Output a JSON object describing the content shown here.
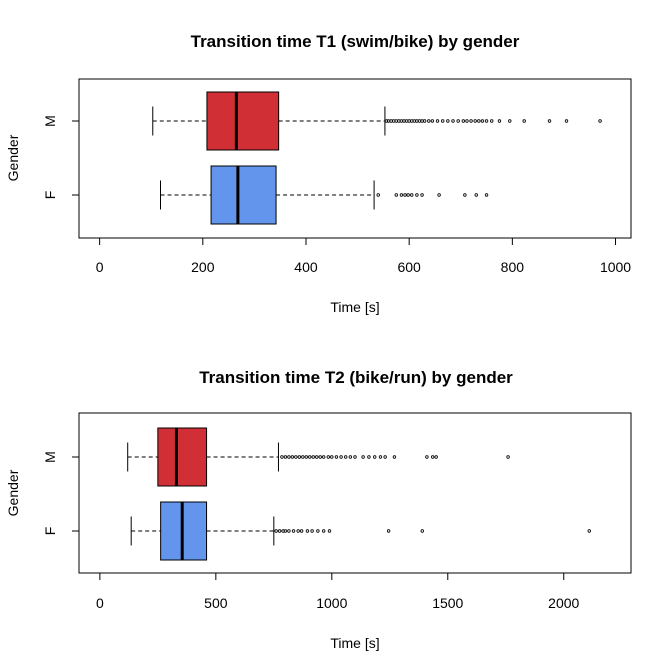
{
  "chart_data": [
    {
      "type": "boxplot",
      "orientation": "horizontal",
      "title": "Transition time T1 (swim/bike) by gender",
      "xlabel": "Time [s]",
      "ylabel": "Gender",
      "xlim": [
        -40,
        1030
      ],
      "xticks": [
        0,
        200,
        400,
        600,
        800,
        1000
      ],
      "categories": [
        "M",
        "F"
      ],
      "grid": false,
      "series": [
        {
          "category": "M",
          "color": "#d03035",
          "whisker_low": 103,
          "q1": 208,
          "median": 265,
          "q3": 347,
          "whisker_high": 553,
          "outliers": [
            556,
            560,
            565,
            570,
            575,
            580,
            585,
            590,
            595,
            600,
            605,
            610,
            615,
            620,
            625,
            630,
            638,
            645,
            655,
            665,
            675,
            685,
            695,
            705,
            712,
            720,
            728,
            735,
            742,
            750,
            760,
            775,
            795,
            823,
            872,
            905,
            970
          ]
        },
        {
          "category": "F",
          "color": "#6495ed",
          "whisker_low": 118,
          "q1": 216,
          "median": 268,
          "q3": 342,
          "whisker_high": 532,
          "outliers": [
            540,
            575,
            585,
            592,
            598,
            605,
            615,
            625,
            658,
            708,
            730,
            750
          ]
        }
      ]
    },
    {
      "type": "boxplot",
      "orientation": "horizontal",
      "title": "Transition time T2 (bike/run) by gender",
      "xlabel": "Time [s]",
      "ylabel": "Gender",
      "xlim": [
        -90,
        2290
      ],
      "xticks": [
        0,
        500,
        1000,
        1500,
        2000
      ],
      "categories": [
        "M",
        "F"
      ],
      "grid": false,
      "series": [
        {
          "category": "M",
          "color": "#d03035",
          "whisker_low": 120,
          "q1": 250,
          "median": 330,
          "q3": 460,
          "whisker_high": 770,
          "outliers": [
            785,
            800,
            815,
            830,
            845,
            860,
            875,
            890,
            905,
            920,
            935,
            950,
            965,
            985,
            1000,
            1020,
            1040,
            1060,
            1080,
            1100,
            1135,
            1160,
            1185,
            1210,
            1230,
            1270,
            1410,
            1435,
            1450,
            1760
          ]
        },
        {
          "category": "F",
          "color": "#6495ed",
          "whisker_low": 135,
          "q1": 262,
          "median": 355,
          "q3": 460,
          "whisker_high": 750,
          "outliers": [
            760,
            775,
            790,
            800,
            815,
            835,
            855,
            870,
            895,
            915,
            940,
            965,
            990,
            1245,
            1390,
            2110
          ]
        }
      ]
    }
  ]
}
